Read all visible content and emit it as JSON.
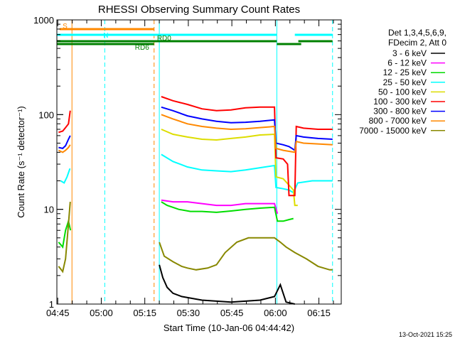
{
  "chart_data": {
    "type": "line",
    "title": "RHESSI Observing Summary Count Rates",
    "xlabel": "Start Time (10-Jan-06 04:44:42)",
    "ylabel": "Count Rate (s⁻¹ detector⁻¹)",
    "x_unit": "minutes since 04:44:42",
    "xlim": [
      0,
      98
    ],
    "ylim": [
      1,
      1000
    ],
    "yscale": "log",
    "x_ticks": [
      {
        "label": "04:45",
        "value": 0.3
      },
      {
        "label": "05:00",
        "value": 15.3
      },
      {
        "label": "05:15",
        "value": 30.3
      },
      {
        "label": "05:30",
        "value": 45.3
      },
      {
        "label": "05:45",
        "value": 60.3
      },
      {
        "label": "06:00",
        "value": 75.3
      },
      {
        "label": "06:15",
        "value": 90.3
      }
    ],
    "y_ticks": [
      {
        "label": "1",
        "value": 1
      },
      {
        "label": "10",
        "value": 10
      },
      {
        "label": "100",
        "value": 100
      },
      {
        "label": "1000",
        "value": 1000
      }
    ],
    "legend_header": [
      "Det 1,3,4,5,6,9,",
      "FDecim 2, Att 0"
    ],
    "series": [
      {
        "name": "3 - 6 keV",
        "color": "#000000",
        "segments": [
          [
            [
              35.3,
              2.6
            ],
            [
              36.5,
              1.9
            ],
            [
              38,
              1.5
            ],
            [
              40,
              1.3
            ],
            [
              43,
              1.2
            ],
            [
              50,
              1.1
            ],
            [
              60,
              1.05
            ],
            [
              70,
              1.1
            ],
            [
              75,
              1.2
            ],
            [
              77,
              1.6
            ],
            [
              79,
              1.05
            ],
            [
              82,
              1.0
            ]
          ]
        ]
      },
      {
        "name": "6 - 12 keV",
        "color": "#ff00ff",
        "segments": [
          [
            [
              36,
              12.5
            ],
            [
              40,
              12
            ],
            [
              45,
              12
            ],
            [
              50,
              11.5
            ],
            [
              55,
              11
            ],
            [
              60,
              11
            ],
            [
              65,
              11.5
            ],
            [
              70,
              11.5
            ],
            [
              75,
              11.5
            ],
            [
              76,
              9
            ]
          ]
        ]
      },
      {
        "name": "12 - 25 keV",
        "color": "#00dd00",
        "segments": [
          [
            [
              0.6,
              4.5
            ],
            [
              2,
              4
            ],
            [
              3,
              6
            ],
            [
              4,
              7.5
            ],
            [
              4.7,
              6
            ]
          ],
          [
            [
              36,
              12
            ],
            [
              38,
              11
            ],
            [
              42,
              10
            ],
            [
              46,
              9.5
            ],
            [
              50,
              9.5
            ],
            [
              55,
              9.3
            ],
            [
              60,
              9.6
            ],
            [
              65,
              10
            ],
            [
              70,
              10.3
            ],
            [
              75,
              10.5
            ],
            [
              76,
              7.5
            ],
            [
              78,
              7.5
            ],
            [
              80,
              7.8
            ],
            [
              81.5,
              8
            ]
          ]
        ]
      },
      {
        "name": "25 - 50 keV",
        "color": "#00ffff",
        "segments": [
          [
            [
              1.3,
              20
            ],
            [
              2.5,
              19
            ],
            [
              3.5,
              22
            ],
            [
              4.5,
              27
            ]
          ],
          [
            [
              36,
              38
            ],
            [
              40,
              32
            ],
            [
              45,
              28
            ],
            [
              50,
              26
            ],
            [
              55,
              25.5
            ],
            [
              60,
              25
            ],
            [
              65,
              26
            ],
            [
              70,
              27.5
            ],
            [
              75,
              29
            ],
            [
              75.5,
              17
            ],
            [
              78,
              16.5
            ],
            [
              80,
              16
            ],
            [
              81.5,
              15
            ],
            [
              83,
              19
            ],
            [
              88,
              20
            ],
            [
              93,
              20
            ],
            [
              95,
              20
            ]
          ]
        ]
      },
      {
        "name": "50 - 100 keV",
        "color": "#dddd00",
        "segments": [
          [
            [
              36,
              70
            ],
            [
              40,
              62
            ],
            [
              45,
              58
            ],
            [
              50,
              55
            ],
            [
              55,
              54
            ],
            [
              60,
              56
            ],
            [
              65,
              58
            ],
            [
              70,
              61
            ],
            [
              75,
              62
            ],
            [
              75.5,
              22
            ],
            [
              78,
              21
            ],
            [
              80,
              18
            ],
            [
              81.5,
              16
            ],
            [
              82,
              11
            ],
            [
              83,
              11
            ]
          ]
        ]
      },
      {
        "name": "100 - 300 keV",
        "color": "#ff0000",
        "segments": [
          [
            [
              0.6,
              65
            ],
            [
              2,
              67
            ],
            [
              3,
              73
            ],
            [
              4,
              80
            ],
            [
              4.6,
              110
            ]
          ],
          [
            [
              36,
              155
            ],
            [
              40,
              140
            ],
            [
              45,
              128
            ],
            [
              50,
              115
            ],
            [
              55,
              110
            ],
            [
              60,
              112
            ],
            [
              65,
              118
            ],
            [
              70,
              120
            ],
            [
              75,
              120
            ],
            [
              75.5,
              35
            ],
            [
              78,
              34
            ],
            [
              79.5,
              30
            ],
            [
              80,
              14
            ],
            [
              82,
              14
            ],
            [
              82.5,
              75
            ],
            [
              85,
              72
            ],
            [
              90,
              70
            ],
            [
              95,
              70
            ]
          ]
        ]
      },
      {
        "name": "300 - 800 keV",
        "color": "#0000ff",
        "segments": [
          [
            [
              0.6,
              45
            ],
            [
              2,
              44
            ],
            [
              3,
              47
            ],
            [
              4,
              55
            ],
            [
              4.6,
              60
            ]
          ],
          [
            [
              36,
              120
            ],
            [
              40,
              110
            ],
            [
              45,
              97
            ],
            [
              50,
              90
            ],
            [
              55,
              85
            ],
            [
              60,
              82
            ],
            [
              65,
              83
            ],
            [
              70,
              85
            ],
            [
              75,
              88
            ],
            [
              75.5,
              50
            ],
            [
              78,
              48
            ],
            [
              80,
              46
            ],
            [
              81,
              44
            ],
            [
              82,
              42
            ],
            [
              82.5,
              60
            ],
            [
              85,
              58
            ],
            [
              90,
              56
            ],
            [
              95,
              55
            ]
          ]
        ]
      },
      {
        "name": "800 - 7000 keV",
        "color": "#ff8800",
        "segments": [
          [
            [
              0.6,
              42
            ],
            [
              2,
              40
            ],
            [
              3,
              42
            ],
            [
              4,
              45
            ],
            [
              4.6,
              48
            ]
          ],
          [
            [
              36,
              100
            ],
            [
              40,
              90
            ],
            [
              45,
              80
            ],
            [
              50,
              75
            ],
            [
              55,
              72
            ],
            [
              60,
              70
            ],
            [
              65,
              71
            ],
            [
              70,
              73
            ],
            [
              75,
              75
            ],
            [
              75.5,
              44
            ],
            [
              78,
              42
            ],
            [
              80,
              41
            ],
            [
              82,
              40
            ],
            [
              82.5,
              52
            ],
            [
              85,
              50
            ],
            [
              90,
              49
            ],
            [
              95,
              48
            ]
          ]
        ]
      },
      {
        "name": "7000 - 15000 keV",
        "color": "#888800",
        "segments": [
          [
            [
              0.6,
              2.5
            ],
            [
              2,
              2.2
            ],
            [
              3,
              3
            ],
            [
              4,
              7
            ],
            [
              4.6,
              12
            ]
          ],
          [
            [
              35.3,
              4.5
            ],
            [
              37,
              3.2
            ],
            [
              40,
              2.8
            ],
            [
              43,
              2.5
            ],
            [
              45,
              2.4
            ],
            [
              48,
              2.3
            ],
            [
              52,
              2.4
            ],
            [
              55,
              2.6
            ],
            [
              58,
              3.5
            ],
            [
              62,
              4.5
            ],
            [
              66,
              5
            ],
            [
              70,
              5
            ],
            [
              75,
              5
            ],
            [
              77,
              4.5
            ],
            [
              79,
              4
            ],
            [
              82,
              3.5
            ],
            [
              86,
              3
            ],
            [
              90,
              2.5
            ],
            [
              94,
              2.3
            ],
            [
              95,
              2.3
            ]
          ]
        ]
      }
    ],
    "flags": [
      {
        "label": "S",
        "color": "#ff8800",
        "segments": [
          [
            1.0,
            33.5
          ]
        ],
        "level": 1
      },
      {
        "label": "N",
        "color": "#00ffff",
        "segments": [
          [
            0,
            75.8
          ],
          [
            82,
            95
          ]
        ],
        "level": 2
      },
      {
        "label": "RD0",
        "color": "#008000",
        "segments": [
          [
            0,
            75.8
          ],
          [
            83.2,
            95
          ]
        ],
        "level": 3
      },
      {
        "label": "RD6",
        "color": "#008000",
        "segments": [
          [
            0,
            33.5
          ],
          [
            75.8,
            84.2
          ]
        ],
        "level": 4
      }
    ],
    "vertical_lines": [
      {
        "x": 5.2,
        "color": "#ff8800",
        "style": "solid"
      },
      {
        "x": 16.5,
        "color": "#00ffff",
        "style": "dashed"
      },
      {
        "x": 33.5,
        "color": "#ff8800",
        "style": "dashed"
      },
      {
        "x": 35.3,
        "color": "#00ffff",
        "style": "solid"
      },
      {
        "x": 75.8,
        "color": "#00ffff",
        "style": "solid"
      },
      {
        "x": 95.0,
        "color": "#00ffff",
        "style": "dashed"
      }
    ],
    "timestamp": "13-Oct-2021 15:25"
  }
}
